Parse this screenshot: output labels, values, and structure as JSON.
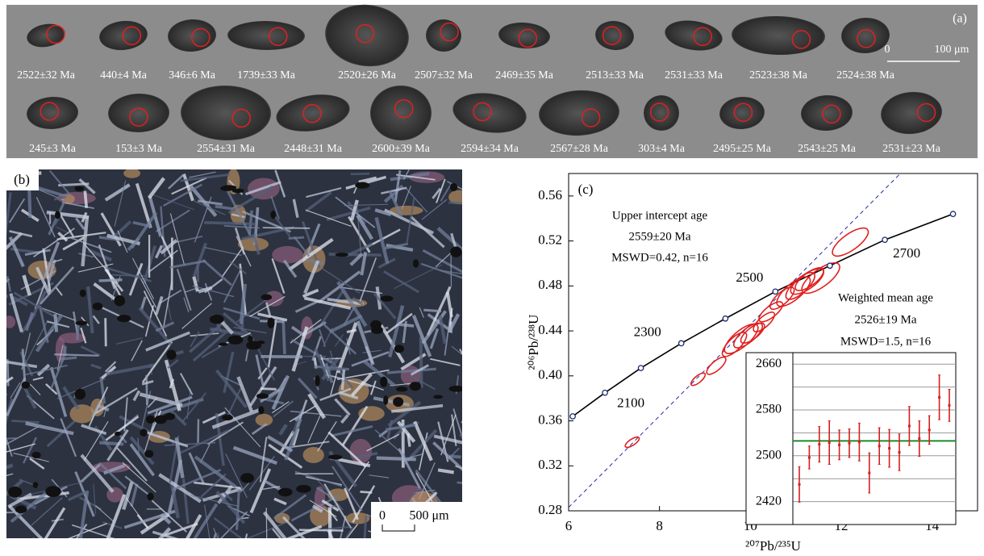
{
  "panel_a": {
    "label": "(a)",
    "scale_bar": {
      "zero": "0",
      "length": "100 μm"
    },
    "row_1": [
      "2522±32 Ma",
      "440±4 Ma",
      "346±6 Ma",
      "1739±33 Ma",
      "2520±26 Ma",
      "2507±32 Ma",
      "2469±35 Ma",
      "2513±33 Ma",
      "2531±33 Ma",
      "2523±38 Ma",
      "2524±38 Ma"
    ],
    "row_2": [
      "245±3 Ma",
      "153±3 Ma",
      "2554±31 Ma",
      "2448±31 Ma",
      "2600±39 Ma",
      "2594±34 Ma",
      "2567±28 Ma",
      "303±4 Ma",
      "2495±25 Ma",
      "2543±25 Ma",
      "2531±23 Ma"
    ]
  },
  "panel_b": {
    "label": "(b)",
    "scale_bar": {
      "zero": "0",
      "length": "500 μm"
    }
  },
  "chart_data": [
    {
      "type": "concordia",
      "panel_label": "(c)",
      "x_label": "²⁰⁷Pb/²³⁵U",
      "y_label": "²⁰⁶Pb/²³⁸U",
      "xlim": [
        6,
        15
      ],
      "ylim": [
        0.28,
        0.58
      ],
      "xticks": [
        6,
        8,
        10,
        12,
        14
      ],
      "yticks": [
        0.28,
        0.32,
        0.36,
        {
          "value": 0.4,
          "label": "0.40"
        },
        0.44,
        0.48,
        0.52,
        0.56
      ],
      "concordia": {
        "color": "#000000",
        "x": [
          6.09,
          6.8,
          7.59,
          8.48,
          9.45,
          10.55,
          11.75,
          12.96,
          14.46
        ],
        "y": [
          0.364,
          0.385,
          0.407,
          0.429,
          0.451,
          0.475,
          0.498,
          0.521,
          0.544
        ],
        "age_labels": [
          null,
          2100,
          null,
          2300,
          null,
          2500,
          null,
          2700,
          null
        ]
      },
      "discordia": {
        "color": "#2b2ba0",
        "x": [
          6,
          13.3
        ],
        "y": [
          0.283,
          0.58
        ]
      },
      "ellipses": {
        "color": "#e0201f",
        "x": [
          7.4,
          8.85,
          9.25,
          9.65,
          9.8,
          9.95,
          10.05,
          10.3,
          10.45,
          10.7,
          10.95,
          11.1,
          11.3,
          11.55,
          11.25,
          12.2
        ],
        "y": [
          0.341,
          0.397,
          0.409,
          0.428,
          0.433,
          0.436,
          0.438,
          0.448,
          0.457,
          0.469,
          0.475,
          0.48,
          0.486,
          0.487,
          0.484,
          0.519
        ],
        "x_err": [
          0.15,
          0.15,
          0.2,
          0.25,
          0.35,
          0.3,
          0.25,
          0.22,
          0.25,
          0.25,
          0.35,
          0.3,
          0.3,
          0.4,
          0.35,
          0.38
        ],
        "y_err": [
          0.004,
          0.005,
          0.007,
          0.01,
          0.012,
          0.01,
          0.008,
          0.008,
          0.008,
          0.009,
          0.012,
          0.011,
          0.009,
          0.012,
          0.01,
          0.011
        ]
      },
      "annotations": {
        "intercept": [
          "Upper intercept age",
          "2559±20 Ma",
          "MSWD=0.42, n=16"
        ],
        "weighted": [
          "Weighted mean age",
          "2526±19 Ma",
          "MSWD=1.5, n=16"
        ]
      }
    },
    {
      "type": "errorbar",
      "ylim": [
        2380,
        2680
      ],
      "yticks": [
        2420,
        2500,
        2580,
        2660
      ],
      "minor_yticks": [
        2460,
        2540,
        2620
      ],
      "color": "#d42020",
      "values": [
        2450,
        2497,
        2520,
        2523,
        2519,
        2522,
        2524,
        2470,
        2517,
        2513,
        2506,
        2552,
        2530,
        2545,
        2602,
        2588
      ],
      "errors": [
        31,
        20,
        31,
        38,
        26,
        25,
        33,
        35,
        32,
        33,
        32,
        34,
        31,
        25,
        39,
        28
      ],
      "mean": 2526,
      "mean_color": "#1a8a2a"
    }
  ]
}
